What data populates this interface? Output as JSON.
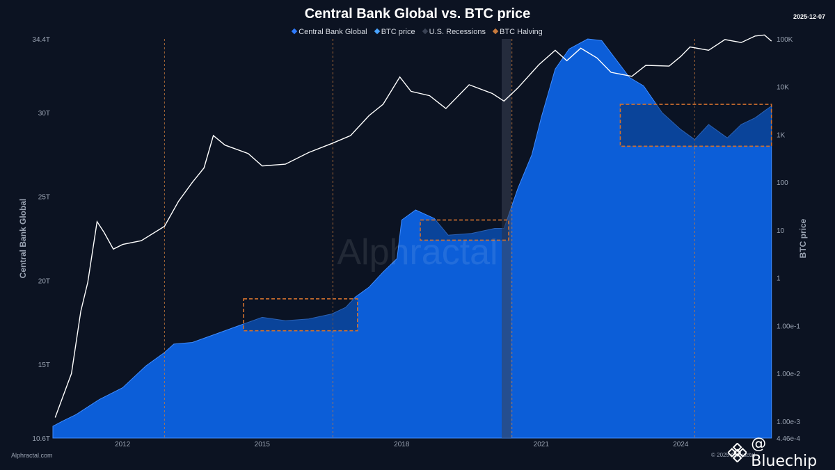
{
  "header": {
    "title": "Central Bank Global vs. BTC price",
    "date": "2025-12-07"
  },
  "legend": [
    {
      "label": "Central Bank Global",
      "color": "#2f7bff"
    },
    {
      "label": "BTC price",
      "color": "#4aa3ff"
    },
    {
      "label": "U.S. Recessions",
      "color": "#3a4254"
    },
    {
      "label": "BTC Halving",
      "color": "#c87a3c"
    }
  ],
  "footer": {
    "source": "Alphractal.com",
    "copyright": "© 2025 Alphractal",
    "watermark": "Alphractal",
    "brand": "@ Bluechip"
  },
  "colors": {
    "background": "#0c1322",
    "cb_fill": "#0c5ed8",
    "btc_line": "#ffffff",
    "halving": "#c87a3c",
    "highlight_box": "#d0702e",
    "recession": "#3a4254"
  },
  "chart_data": {
    "type": "area",
    "title": "Central Bank Global vs. BTC price",
    "x_ticks": [
      "2012",
      "2015",
      "2018",
      "2021",
      "2024"
    ],
    "left_axis": {
      "label": "Central Bank Global",
      "ticks": [
        "10.6T",
        "15T",
        "20T",
        "25T",
        "30T",
        "34.4T"
      ],
      "range": [
        10.6,
        34.4
      ],
      "unit": "T"
    },
    "right_axis": {
      "label": "BTC price",
      "scale": "log",
      "ticks": [
        "4.46e-4",
        "1.00e-3",
        "1.00e-2",
        "1.00e-1",
        "1",
        "10",
        "100",
        "1K",
        "10K",
        "100K"
      ],
      "range": [
        0.000446,
        100000
      ]
    },
    "grid": false,
    "legend_position": "top-center",
    "series": [
      {
        "name": "Central Bank Global",
        "type": "area",
        "axis": "left",
        "points": [
          [
            2010.5,
            11.3
          ],
          [
            2010.7,
            11.6
          ],
          [
            2011.0,
            12.0
          ],
          [
            2011.5,
            12.9
          ],
          [
            2012.0,
            13.6
          ],
          [
            2012.5,
            14.9
          ],
          [
            2012.9,
            15.7
          ],
          [
            2013.1,
            16.2
          ],
          [
            2013.5,
            16.3
          ],
          [
            2014.0,
            16.8
          ],
          [
            2014.5,
            17.3
          ],
          [
            2015.0,
            17.8
          ],
          [
            2015.5,
            17.6
          ],
          [
            2016.0,
            17.7
          ],
          [
            2016.5,
            18.0
          ],
          [
            2016.8,
            18.4
          ],
          [
            2017.0,
            19.0
          ],
          [
            2017.3,
            19.6
          ],
          [
            2017.6,
            20.5
          ],
          [
            2017.9,
            21.3
          ],
          [
            2018.0,
            23.6
          ],
          [
            2018.3,
            24.2
          ],
          [
            2018.7,
            23.7
          ],
          [
            2019.0,
            22.7
          ],
          [
            2019.5,
            22.8
          ],
          [
            2020.0,
            23.1
          ],
          [
            2020.2,
            23.1
          ],
          [
            2020.5,
            25.5
          ],
          [
            2020.8,
            27.5
          ],
          [
            2021.0,
            29.7
          ],
          [
            2021.3,
            32.6
          ],
          [
            2021.6,
            33.8
          ],
          [
            2022.0,
            34.4
          ],
          [
            2022.3,
            34.3
          ],
          [
            2022.6,
            33.2
          ],
          [
            2022.9,
            32.1
          ],
          [
            2023.2,
            31.6
          ],
          [
            2023.6,
            30.0
          ],
          [
            2024.0,
            29.0
          ],
          [
            2024.3,
            28.4
          ],
          [
            2024.6,
            29.3
          ],
          [
            2025.0,
            28.5
          ],
          [
            2025.3,
            29.3
          ],
          [
            2025.6,
            29.7
          ],
          [
            2025.8,
            30.1
          ],
          [
            2025.95,
            30.4
          ]
        ]
      },
      {
        "name": "BTC price",
        "type": "line",
        "axis": "right",
        "points": [
          [
            2010.55,
            0.0012
          ],
          [
            2010.7,
            0.003
          ],
          [
            2010.9,
            0.01
          ],
          [
            2011.1,
            0.2
          ],
          [
            2011.25,
            0.8
          ],
          [
            2011.45,
            15
          ],
          [
            2011.6,
            9
          ],
          [
            2011.8,
            4
          ],
          [
            2012.0,
            5
          ],
          [
            2012.4,
            6
          ],
          [
            2012.9,
            12
          ],
          [
            2013.2,
            40
          ],
          [
            2013.5,
            100
          ],
          [
            2013.75,
            200
          ],
          [
            2013.95,
            950
          ],
          [
            2014.2,
            600
          ],
          [
            2014.7,
            400
          ],
          [
            2015.0,
            220
          ],
          [
            2015.5,
            240
          ],
          [
            2016.0,
            420
          ],
          [
            2016.5,
            650
          ],
          [
            2016.9,
            950
          ],
          [
            2017.3,
            2500
          ],
          [
            2017.6,
            4300
          ],
          [
            2017.96,
            16000
          ],
          [
            2018.2,
            8000
          ],
          [
            2018.6,
            6500
          ],
          [
            2018.95,
            3500
          ],
          [
            2019.45,
            11000
          ],
          [
            2019.95,
            7200
          ],
          [
            2020.2,
            5000
          ],
          [
            2020.5,
            9500
          ],
          [
            2020.95,
            29000
          ],
          [
            2021.3,
            58000
          ],
          [
            2021.55,
            35000
          ],
          [
            2021.85,
            64000
          ],
          [
            2022.2,
            40000
          ],
          [
            2022.5,
            20000
          ],
          [
            2022.95,
            16500
          ],
          [
            2023.25,
            28000
          ],
          [
            2023.75,
            27000
          ],
          [
            2024.0,
            43000
          ],
          [
            2024.2,
            68000
          ],
          [
            2024.6,
            58000
          ],
          [
            2024.95,
            97000
          ],
          [
            2025.3,
            84000
          ],
          [
            2025.6,
            115000
          ],
          [
            2025.8,
            121000
          ],
          [
            2025.95,
            90000
          ]
        ]
      }
    ],
    "halvings": [
      2012.9,
      2016.52,
      2020.37,
      2024.3
    ],
    "recessions": [
      [
        2020.15,
        2020.35
      ]
    ],
    "highlight_boxes": [
      {
        "x": [
          2014.6,
          2017.05
        ],
        "y": [
          17.0,
          18.9
        ]
      },
      {
        "x": [
          2018.4,
          2020.3
        ],
        "y": [
          22.4,
          23.6
        ]
      },
      {
        "x": [
          2022.7,
          2025.95
        ],
        "y": [
          28.0,
          30.5
        ]
      }
    ]
  }
}
